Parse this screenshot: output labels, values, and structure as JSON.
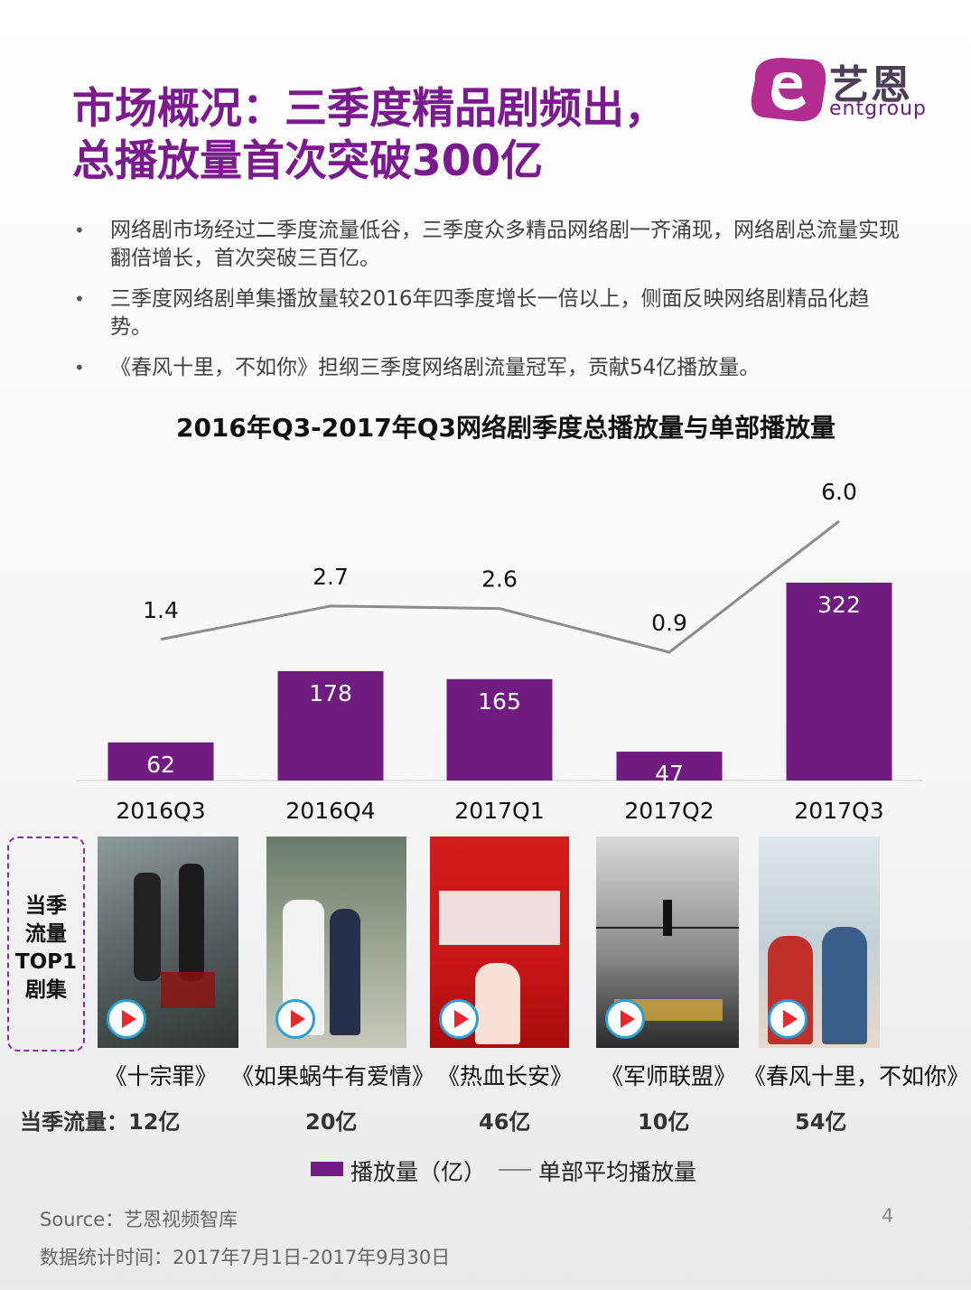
{
  "slide": {
    "title_line1": "市场概况：三季度精品剧频出，",
    "title_line2": "总播放量首次突破300亿",
    "logo": {
      "cn": "艺恩",
      "en": "entgroup"
    },
    "bullets": [
      "网络剧市场经过二季度流量低谷，三季度众多精品网络剧一齐涌现，网络剧总流量实现翻倍增长，首次突破三百亿。",
      "三季度网络剧单集播放量较2016年四季度增长一倍以上，侧面反映网络剧精品化趋势。",
      "《春风十里，不如你》担纲三季度网络剧流量冠军，贡献54亿播放量。"
    ],
    "chart_title": "2016年Q3-2017年Q3网络剧季度总播放量与单部播放量",
    "top1_label": "当季流量TOP1剧集",
    "top1_lines": [
      "当季",
      "流量",
      "TOP1",
      "剧集"
    ],
    "stream_prefix": "当季流量：",
    "shows": [
      {
        "name": "《十宗罪》",
        "stream": "12亿"
      },
      {
        "name": "《如果蜗牛有爱情》",
        "stream": "20亿"
      },
      {
        "name": "《热血长安》",
        "stream": "46亿"
      },
      {
        "name": "《军师联盟》",
        "stream": "10亿"
      },
      {
        "name": "《春风十里，不如你》",
        "stream": "54亿"
      }
    ],
    "source": "Source：艺恩视频智库",
    "date_range": "数据统计时间：2017年7月1日-2017年9月30日",
    "page_number": "4",
    "colors": {
      "title": "#7b1a8e",
      "bar": "#701b80",
      "line": "#8c8c8c",
      "dash": "#8a2a9c"
    }
  },
  "chart_data": {
    "type": "bar",
    "title": "2016年Q3-2017年Q3网络剧季度总播放量与单部播放量",
    "categories": [
      "2016Q3",
      "2016Q4",
      "2017Q1",
      "2017Q2",
      "2017Q3"
    ],
    "series": [
      {
        "name": "播放量（亿）",
        "type": "bar",
        "values": [
          62,
          178,
          165,
          47,
          322
        ]
      },
      {
        "name": "单部平均播放量",
        "type": "line",
        "values": [
          1.4,
          2.7,
          2.6,
          0.9,
          6.0
        ]
      }
    ],
    "value_labels_bar": [
      "62",
      "178",
      "165",
      "47",
      "322"
    ],
    "value_labels_line": [
      "1.4",
      "2.7",
      "2.6",
      "0.9",
      "6.0"
    ],
    "legend": [
      "播放量（亿）",
      "单部平均播放量"
    ],
    "legend_position": "bottom",
    "grid": false
  }
}
